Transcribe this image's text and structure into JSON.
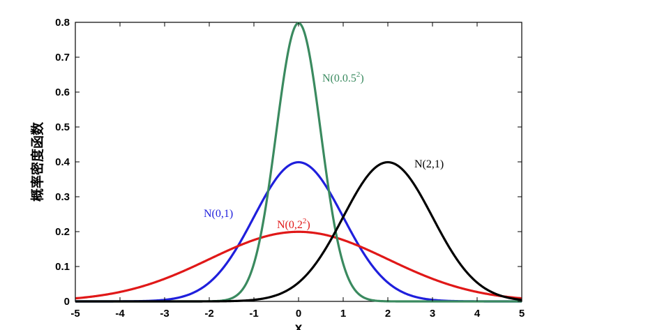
{
  "chart_data": {
    "type": "line",
    "xlabel": "x",
    "ylabel": "概率密度函数",
    "xlim": [
      -5,
      5
    ],
    "ylim": [
      0,
      0.8
    ],
    "xticks": [
      -5,
      -4,
      -3,
      -2,
      -1,
      0,
      1,
      2,
      3,
      4,
      5
    ],
    "yticks": [
      0,
      0.1,
      0.2,
      0.3,
      0.4,
      0.5,
      0.6,
      0.7,
      0.8
    ],
    "ytick_labels": [
      "0",
      "0.1",
      "0.2",
      "0.3",
      "0.4",
      "0.5",
      "0.6",
      "0.7",
      "0.8"
    ],
    "grid": false,
    "series": [
      {
        "name": "N(0,1)",
        "label_base": "N(0,1)",
        "label_sup": "",
        "color": "#1f1fdc",
        "mean": 0,
        "sd": 1,
        "x": [
          -5,
          -4,
          -3,
          -2,
          -1,
          0,
          1,
          2,
          3,
          4,
          5
        ],
        "y": [
          1.5e-06,
          0.00013,
          0.0044,
          0.054,
          0.242,
          0.399,
          0.242,
          0.054,
          0.0044,
          0.00013,
          1.5e-06
        ]
      },
      {
        "name": "N(0,2²)",
        "label_base": "N(0,2",
        "label_sup": "2",
        "label_tail": ")",
        "color": "#e01818",
        "mean": 0,
        "sd": 2,
        "x": [
          -5,
          -4,
          -3,
          -2,
          -1,
          0,
          1,
          2,
          3,
          4,
          5
        ],
        "y": [
          0.0088,
          0.027,
          0.065,
          0.121,
          0.176,
          0.199,
          0.176,
          0.121,
          0.065,
          0.027,
          0.0088
        ]
      },
      {
        "name": "N(0.0.5²)",
        "label_base": "N(0.0.5",
        "label_sup": "2",
        "label_tail": ")",
        "color": "#3a8a5f",
        "mean": 0,
        "sd": 0.5,
        "x": [
          -2,
          -1.5,
          -1,
          -0.5,
          0,
          0.5,
          1,
          1.5,
          2
        ],
        "y": [
          0.00027,
          0.0089,
          0.108,
          0.484,
          0.798,
          0.484,
          0.108,
          0.0089,
          0.00027
        ]
      },
      {
        "name": "N(2,1)",
        "label_base": "N(2,1)",
        "label_sup": "",
        "color": "#000000",
        "mean": 2,
        "sd": 1,
        "x": [
          -3,
          -2,
          -1,
          0,
          1,
          2,
          3,
          4,
          5
        ],
        "y": [
          1.5e-06,
          0.00013,
          0.0044,
          0.054,
          0.242,
          0.399,
          0.242,
          0.054,
          0.0044
        ]
      }
    ]
  }
}
